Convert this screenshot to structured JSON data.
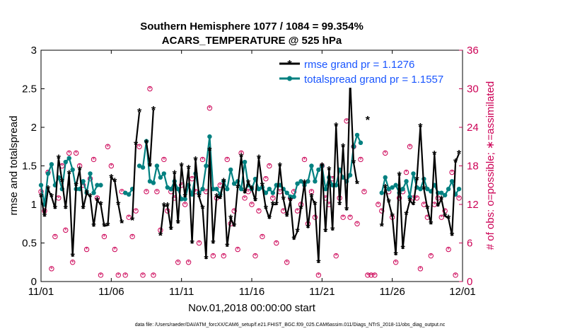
{
  "chart_data": {
    "type": "line",
    "title_lines": [
      "Southern Hemisphere 1077 / 1084 = 99.354%",
      "ACARS_TEMPERATURE @ 525 hPa"
    ],
    "xlabel": "Nov.01,2018 00:00:00 start",
    "ylabel_left": "rmse and totalspread",
    "ylabel_right": "# of obs: o=possible; ∗=assimilated",
    "footnote": "data file: /Users/raeder/DAI/ATM_forcXX/CAM6_setup/f.e21.FHIST_BGC.f09_025.CAM6assim.011/Diags_NTrS_2018-11/obs_diag_output.nc",
    "xlim": [
      0,
      30
    ],
    "ylim_left": [
      0,
      3
    ],
    "ylim_right": [
      0,
      36
    ],
    "x_ticks": [
      0,
      5,
      10,
      15,
      20,
      25,
      30
    ],
    "x_tick_labels": [
      "11/01",
      "11/06",
      "11/11",
      "11/16",
      "11/21",
      "11/26",
      "12/01"
    ],
    "y_left_ticks": [
      0,
      0.5,
      1,
      1.5,
      2,
      2.5,
      3
    ],
    "y_left_tick_labels": [
      "0",
      "0.5",
      "1",
      "1.5",
      "2",
      "2.5",
      "3"
    ],
    "y_right_ticks": [
      0,
      6,
      12,
      18,
      24,
      30,
      36
    ],
    "y_right_tick_labels": [
      "0",
      "6",
      "12",
      "18",
      "24",
      "30",
      "36"
    ],
    "colors": {
      "rmse": "#000000",
      "spread": "#008080",
      "obs": "#cc0055",
      "legend_text": "#1a56ff",
      "right_axis": "#cc0055"
    },
    "legend": {
      "location": "top-right",
      "entries": [
        "rmse grand pr = 1.1276",
        "totalspread grand pr = 1.1557"
      ]
    },
    "series": [
      {
        "name": "rmse grand pr = 1.1276",
        "x": [
          0,
          0.25,
          0.5,
          0.75,
          1,
          1.25,
          1.5,
          1.75,
          2,
          2.25,
          2.5,
          2.75,
          3,
          3.25,
          3.5,
          3.75,
          4,
          4.25,
          4.5,
          4.75,
          5,
          5.25,
          5.5,
          5.75,
          6,
          6.25,
          6.5,
          6.75,
          7,
          7.25,
          7.5,
          7.75,
          8,
          8.25,
          8.5,
          8.75,
          9,
          9.25,
          9.5,
          9.75,
          10,
          10.25,
          10.5,
          10.75,
          11,
          11.25,
          11.5,
          11.75,
          12,
          12.25,
          12.5,
          12.75,
          13,
          13.25,
          13.5,
          13.75,
          14,
          14.25,
          14.5,
          14.75,
          15,
          15.25,
          15.5,
          15.75,
          16,
          16.25,
          16.5,
          16.75,
          17,
          17.25,
          17.5,
          17.75,
          18,
          18.25,
          18.5,
          18.75,
          19,
          19.25,
          19.5,
          19.75,
          20,
          20.25,
          20.5,
          20.75,
          21,
          21.25,
          21.5,
          21.75,
          22,
          22.25,
          22.5,
          22.75,
          23,
          23.25,
          23.5,
          23.75,
          24,
          24.25,
          24.5,
          24.75,
          25,
          25.25,
          25.5,
          25.75,
          26,
          26.25,
          26.5,
          26.75,
          27,
          27.25,
          27.5,
          27.75,
          28,
          28.25,
          28.5,
          28.75,
          29,
          29.25,
          29.5,
          29.75
        ],
        "values": [
          1.1,
          0.85,
          1.2,
          1.1,
          0.95,
          1.6,
          1.3,
          0.95,
          1.4,
          0.33,
          1.25,
          1.45,
          0.95,
          1.15,
          1.1,
          0.72,
          1.05,
          1.0,
          0.72,
          0.73,
          1.35,
          1.3,
          1.0,
          0.76,
          null,
          null,
          0.8,
          1.78,
          2.2,
          null,
          1.8,
          1.5,
          2.23,
          null,
          0.6,
          0.98,
          0.98,
          0.68,
          1.4,
          0.76,
          1.5,
          1.1,
          1.47,
          0.5,
          1.58,
          1.1,
          0.95,
          0.3,
          1.7,
          0.5,
          1.1,
          1.08,
          1.3,
          0.46,
          0.82,
          0.72,
          1.22,
          1.62,
          1.15,
          1.28,
          1.2,
          1.05,
          1.6,
          1.25,
          0.95,
          0.82,
          1.0,
          1.0,
          1.5,
          1.07,
          0.85,
          1.05,
          0.55,
          0.65,
          0.95,
          1.28,
          0.7,
          1.1,
          1.0,
          0.25,
          1.5,
          0.65,
          1.45,
          0.67,
          2.02,
          1.0,
          1.75,
          0.93,
          2.62,
          1.54,
          1.27,
          null,
          null,
          2.1,
          null,
          null,
          null,
          0.72,
          1.22,
          1.03,
          0.85,
          0.35,
          1.38,
          0.43,
          0.87,
          1.05,
          1.0,
          1.32,
          2.01,
          1.2,
          0.95,
          0.75,
          1.65,
          0.98,
          1.07,
          0.85,
          0.82,
          0.6,
          1.55,
          1.66
        ]
      },
      {
        "name": "totalspread grand pr = 1.1557",
        "x": [
          0,
          0.25,
          0.5,
          0.75,
          1,
          1.25,
          1.5,
          1.75,
          2,
          2.25,
          2.5,
          2.75,
          3,
          3.25,
          3.5,
          3.75,
          4,
          4.25,
          4.5,
          4.75,
          5,
          5.25,
          5.5,
          5.75,
          6,
          6.25,
          6.5,
          6.75,
          7,
          7.25,
          7.5,
          7.75,
          8,
          8.25,
          8.5,
          8.75,
          9,
          9.25,
          9.5,
          9.75,
          10,
          10.25,
          10.5,
          10.75,
          11,
          11.25,
          11.5,
          11.75,
          12,
          12.25,
          12.5,
          12.75,
          13,
          13.25,
          13.5,
          13.75,
          14,
          14.25,
          14.5,
          14.75,
          15,
          15.25,
          15.5,
          15.75,
          16,
          16.25,
          16.5,
          16.75,
          17,
          17.25,
          17.5,
          17.75,
          18,
          18.25,
          18.5,
          18.75,
          19,
          19.25,
          19.5,
          19.75,
          20,
          20.25,
          20.5,
          20.75,
          21,
          21.25,
          21.5,
          21.75,
          22,
          22.25,
          22.5,
          22.75,
          23,
          23.25,
          23.5,
          23.75,
          24,
          24.25,
          24.5,
          24.75,
          25,
          25.25,
          25.5,
          25.75,
          26,
          26.25,
          26.5,
          26.75,
          27,
          27.25,
          27.5,
          27.75,
          28,
          28.25,
          28.5,
          28.75,
          29,
          29.25,
          29.5,
          29.75
        ],
        "values": [
          1.25,
          1.0,
          1.4,
          1.52,
          1.25,
          1.35,
          1.2,
          1.55,
          1.6,
          1.45,
          1.2,
          1.2,
          1.3,
          1.15,
          1.4,
          1.15,
          1.25,
          1.25,
          null,
          null,
          null,
          null,
          null,
          null,
          1.15,
          1.13,
          1.2,
          null,
          1.5,
          1.48,
          1.82,
          1.3,
          1.28,
          1.5,
          1.35,
          1.4,
          1.22,
          1.2,
          1.3,
          1.2,
          1.07,
          1.07,
          1.25,
          1.13,
          1.4,
          1.15,
          1.2,
          1.5,
          1.88,
          1.2,
          1.2,
          1.13,
          1.3,
          1.2,
          1.45,
          1.27,
          1.3,
          1.2,
          1.55,
          1.25,
          1.2,
          1.33,
          1.2,
          1.22,
          1.15,
          1.2,
          1.15,
          1.25,
          1.25,
          1.2,
          1.15,
          1.1,
          1.1,
          1.27,
          1.3,
          1.25,
          1.3,
          1.5,
          1.3,
          1.45,
          1.5,
          1.2,
          1.35,
          1.25,
          1.25,
          1.45,
          1.35,
          1.3,
          1.38,
          1.75,
          1.9,
          1.8,
          null,
          null,
          null,
          null,
          null,
          1.15,
          1.35,
          1.2,
          1.22,
          1.25,
          1.15,
          1.2,
          1.3,
          1.1,
          1.4,
          1.22,
          1.2,
          1.33,
          1.2,
          1.17,
          1.25,
          1.15,
          1.15,
          1.12,
          1.2,
          1.3,
          1.13,
          1.2
        ]
      },
      {
        "name": "obs possible (o) / assimilated (*)",
        "axis": "right",
        "x": [
          0,
          0.25,
          0.5,
          0.75,
          1,
          1.25,
          1.5,
          1.75,
          2,
          2.25,
          2.5,
          2.75,
          3,
          3.25,
          3.5,
          3.75,
          4,
          4.25,
          4.5,
          4.75,
          5,
          5.25,
          5.5,
          5.75,
          6,
          6.25,
          6.5,
          6.75,
          7,
          7.25,
          7.5,
          7.75,
          8,
          8.25,
          8.5,
          8.75,
          9,
          9.25,
          9.5,
          9.75,
          10,
          10.25,
          10.5,
          10.75,
          11,
          11.25,
          11.5,
          11.75,
          12,
          12.25,
          12.5,
          12.75,
          13,
          13.25,
          13.5,
          13.75,
          14,
          14.25,
          14.5,
          14.75,
          15,
          15.25,
          15.5,
          15.75,
          16,
          16.25,
          16.5,
          16.75,
          17,
          17.25,
          17.5,
          17.75,
          18,
          18.25,
          18.5,
          18.75,
          19,
          19.25,
          19.5,
          19.75,
          20,
          20.25,
          20.5,
          20.75,
          21,
          21.25,
          21.5,
          21.75,
          22,
          22.25,
          22.5,
          22.75,
          23,
          23.25,
          23.5,
          23.75,
          24,
          24.25,
          24.5,
          24.75,
          25,
          25.25,
          25.5,
          25.75,
          26,
          26.25,
          26.5,
          26.75,
          27,
          27.25,
          27.5,
          27.75,
          28,
          28.25,
          28.5,
          28.75,
          29,
          29.25,
          29.5,
          29.75
        ],
        "values": [
          14,
          11,
          17,
          2,
          7,
          13,
          18,
          8,
          20,
          3,
          20,
          18,
          15,
          5,
          16,
          19,
          13,
          1,
          7,
          21,
          18,
          5,
          1,
          14,
          1,
          10,
          7,
          11,
          21,
          1,
          14,
          30,
          1,
          14,
          8,
          19,
          11,
          14,
          13,
          3,
          15,
          12,
          3,
          16,
          14,
          6,
          19,
          14,
          27,
          4,
          13,
          15,
          4,
          19,
          9,
          11,
          5,
          20,
          13,
          14,
          12,
          4,
          11,
          7,
          16,
          18,
          13,
          6,
          14,
          11,
          3,
          13,
          14,
          11,
          12,
          19,
          9,
          14,
          10,
          1,
          18,
          13,
          12,
          16,
          4,
          13,
          10,
          25,
          10,
          21,
          9,
          19,
          14,
          1,
          1,
          1,
          12,
          11,
          20,
          14,
          10,
          3,
          13,
          14,
          17,
          21,
          13,
          13,
          2,
          12,
          10,
          4,
          12,
          13,
          10,
          11,
          5,
          17,
          1,
          13
        ]
      }
    ]
  }
}
